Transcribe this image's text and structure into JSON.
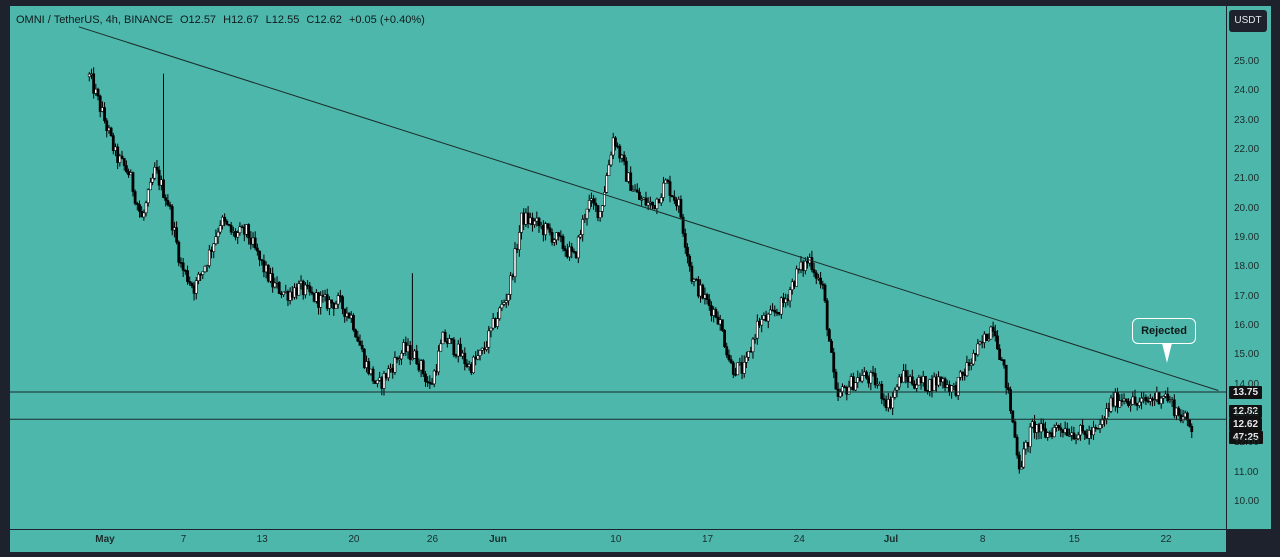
{
  "legend": {
    "symbol": "OMNI / TetherUS, 4h, BINANCE",
    "open": "O12.57",
    "high": "H12.67",
    "low": "L12.55",
    "close": "C12.62",
    "change": "+0.05 (+0.40%)"
  },
  "currency_button": "USDT",
  "annotation": "Rejected",
  "price_badges": {
    "resistance": "13.75",
    "support": "12.82",
    "last_price": "12.62",
    "countdown": "47:25"
  },
  "colors": {
    "background": "#4db7ac",
    "frame": "#1e222d",
    "candles": "#000000",
    "lines": "#1b2b2a"
  },
  "chart_data": {
    "type": "candlestick",
    "title": "OMNI / TetherUS, 4h, BINANCE",
    "y_axis": {
      "ticks": [
        "25.00",
        "24.00",
        "23.00",
        "22.00",
        "21.00",
        "20.00",
        "19.00",
        "18.00",
        "17.00",
        "16.00",
        "15.00",
        "14.00",
        "13.00",
        "12.00",
        "11.00",
        "10.00"
      ],
      "ylim": [
        9.2,
        26.0
      ]
    },
    "x_axis": {
      "ticks": [
        "May",
        "7",
        "13",
        "20",
        "26",
        "Jun",
        "10",
        "17",
        "24",
        "Jul",
        "8",
        "15",
        "22"
      ],
      "xlim_days": [
        0,
        85
      ]
    },
    "x_tick_days": [
      1,
      7,
      13,
      20,
      26,
      31,
      40,
      47,
      54,
      61,
      68,
      75,
      82
    ],
    "price_path": [
      [
        0.0,
        24.5
      ],
      [
        1.0,
        23.2
      ],
      [
        2.0,
        21.8
      ],
      [
        3.0,
        21.2
      ],
      [
        4.0,
        19.6
      ],
      [
        5.0,
        21.3
      ],
      [
        6.0,
        20.2
      ],
      [
        7.0,
        18.0
      ],
      [
        8.0,
        17.3
      ],
      [
        9.0,
        18.3
      ],
      [
        10.0,
        19.6
      ],
      [
        11.0,
        19.1
      ],
      [
        12.0,
        19.2
      ],
      [
        13.0,
        18.2
      ],
      [
        14.0,
        17.4
      ],
      [
        15.0,
        17.1
      ],
      [
        16.0,
        17.3
      ],
      [
        17.0,
        17.0
      ],
      [
        18.0,
        16.8
      ],
      [
        19.0,
        16.8
      ],
      [
        20.0,
        16.3
      ],
      [
        21.0,
        14.8
      ],
      [
        22.0,
        13.9
      ],
      [
        23.0,
        14.6
      ],
      [
        24.0,
        15.2
      ],
      [
        25.0,
        14.9
      ],
      [
        26.0,
        13.9
      ],
      [
        27.0,
        15.6
      ],
      [
        28.0,
        15.2
      ],
      [
        29.0,
        14.6
      ],
      [
        30.0,
        15.1
      ],
      [
        31.0,
        16.2
      ],
      [
        32.0,
        17.2
      ],
      [
        33.0,
        19.7
      ],
      [
        34.0,
        19.5
      ],
      [
        35.0,
        19.2
      ],
      [
        36.0,
        18.8
      ],
      [
        37.0,
        18.3
      ],
      [
        38.0,
        20.2
      ],
      [
        39.0,
        19.9
      ],
      [
        40.0,
        22.5
      ],
      [
        41.0,
        21.1
      ],
      [
        42.0,
        20.3
      ],
      [
        43.0,
        20.1
      ],
      [
        44.0,
        20.9
      ],
      [
        45.0,
        20.1
      ],
      [
        46.0,
        17.6
      ],
      [
        47.0,
        16.9
      ],
      [
        48.0,
        16.3
      ],
      [
        49.0,
        14.6
      ],
      [
        50.0,
        14.5
      ],
      [
        51.0,
        16.1
      ],
      [
        52.0,
        16.3
      ],
      [
        53.0,
        16.8
      ],
      [
        54.0,
        17.8
      ],
      [
        55.0,
        18.3
      ],
      [
        56.0,
        17.2
      ],
      [
        57.0,
        13.5
      ],
      [
        58.0,
        14.0
      ],
      [
        59.0,
        14.3
      ],
      [
        60.0,
        14.1
      ],
      [
        61.0,
        13.3
      ],
      [
        62.0,
        14.3
      ],
      [
        63.0,
        14.1
      ],
      [
        64.0,
        14.0
      ],
      [
        65.0,
        14.2
      ],
      [
        66.0,
        13.8
      ],
      [
        67.0,
        14.6
      ],
      [
        68.0,
        15.3
      ],
      [
        69.0,
        16.1
      ],
      [
        70.0,
        14.0
      ],
      [
        71.0,
        11.2
      ],
      [
        72.0,
        12.6
      ],
      [
        73.0,
        12.3
      ],
      [
        74.0,
        12.6
      ],
      [
        75.0,
        12.4
      ],
      [
        76.0,
        12.3
      ],
      [
        77.0,
        12.4
      ],
      [
        78.0,
        13.4
      ],
      [
        79.0,
        13.6
      ],
      [
        80.0,
        13.3
      ],
      [
        81.0,
        13.5
      ],
      [
        82.0,
        13.7
      ],
      [
        83.0,
        13.1
      ],
      [
        84.0,
        12.6
      ]
    ],
    "lines": [
      {
        "kind": "trendline",
        "from": [
          -1.0,
          26.2
        ],
        "to": [
          86.0,
          13.8
        ]
      },
      {
        "kind": "horizontal",
        "value": 13.75
      },
      {
        "kind": "horizontal",
        "value": 12.82
      }
    ]
  }
}
